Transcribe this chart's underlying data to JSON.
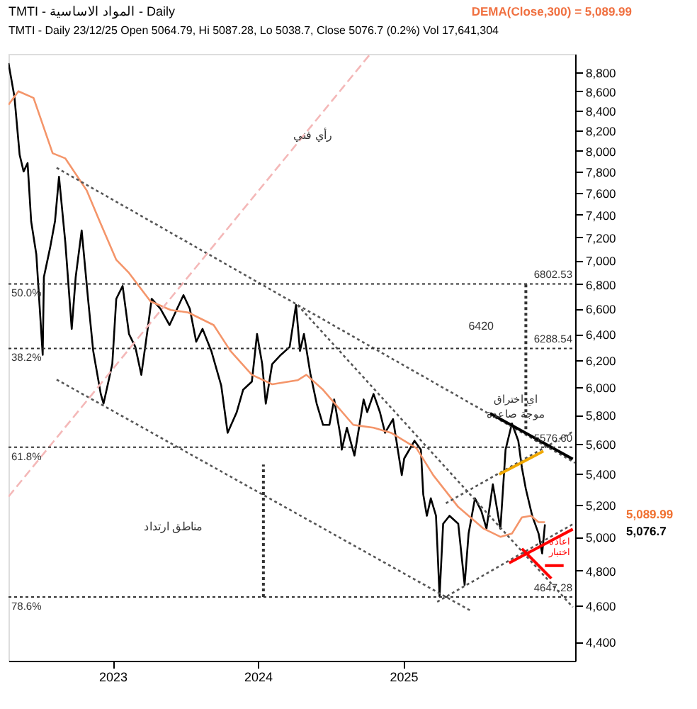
{
  "chart_data": {
    "type": "line",
    "title": "TMTI - المواد الاساسية - Daily",
    "subtitle": "TMTI - Daily 23/12/25 Open 5064.79, Hi 5087.28, Lo 5038.7, Close 5076.7 (0.2%) Vol 17,641,304",
    "xlim": [
      "2022-04-14",
      "2026-03-09"
    ],
    "xticks": [
      "2023",
      "2024",
      "2025"
    ],
    "ylim": [
      4300,
      9000
    ],
    "yticks": [
      {
        "value": 4400,
        "label": "4,400"
      },
      {
        "value": 4600,
        "label": "4,600"
      },
      {
        "value": 4800,
        "label": "4,800"
      },
      {
        "value": 5000,
        "label": "5,000"
      },
      {
        "value": 5200,
        "label": "5,200"
      },
      {
        "value": 5400,
        "label": "5,400"
      },
      {
        "value": 5600,
        "label": "5,600"
      },
      {
        "value": 5800,
        "label": "5,800"
      },
      {
        "value": 6000,
        "label": "6,000"
      },
      {
        "value": 6200,
        "label": "6,200"
      },
      {
        "value": 6400,
        "label": "6,400"
      },
      {
        "value": 6600,
        "label": "6,600"
      },
      {
        "value": 6800,
        "label": "6,800"
      },
      {
        "value": 7000,
        "label": "7,000"
      },
      {
        "value": 7200,
        "label": "7,200"
      },
      {
        "value": 7400,
        "label": "7,400"
      },
      {
        "value": 7600,
        "label": "7,600"
      },
      {
        "value": 7800,
        "label": "7,800"
      },
      {
        "value": 8000,
        "label": "8,000"
      },
      {
        "value": 8200,
        "label": "8,200"
      },
      {
        "value": 8400,
        "label": "8,400"
      },
      {
        "value": 8600,
        "label": "8,600"
      },
      {
        "value": 8800,
        "label": "8,800"
      }
    ],
    "log": true,
    "grid": false,
    "marker": "none",
    "series": [
      {
        "color": "#000000",
        "line_style": "solid",
        "x": [
          "2022-04-14",
          "2022-04-29",
          "2022-05-12",
          "2022-05-22",
          "2022-06-01",
          "2022-06-10",
          "2022-06-23",
          "2022-07-09",
          "2022-07-12",
          "2022-07-28",
          "2022-08-09",
          "2022-08-19",
          "2022-09-04",
          "2022-09-20",
          "2022-09-30",
          "2022-10-15",
          "2022-10-31",
          "2022-11-13",
          "2022-12-02",
          "2022-12-09",
          "2022-12-31",
          "2023-01-10",
          "2023-01-26",
          "2023-02-11",
          "2023-02-27",
          "2023-03-14",
          "2023-03-30",
          "2023-04-09",
          "2023-05-01",
          "2023-05-24",
          "2023-06-12",
          "2023-06-28",
          "2023-07-14",
          "2023-07-30",
          "2023-08-15",
          "2023-09-06",
          "2023-10-01",
          "2023-10-17",
          "2023-11-09",
          "2023-11-25",
          "2023-12-17",
          "2023-12-30",
          "2024-01-12",
          "2024-01-21",
          "2024-02-06",
          "2024-02-28",
          "2024-03-21",
          "2024-04-06",
          "2024-04-16",
          "2024-04-26",
          "2024-05-12",
          "2024-05-28",
          "2024-06-13",
          "2024-06-29",
          "2024-07-11",
          "2024-07-27",
          "2024-07-30",
          "2024-08-12",
          "2024-08-31",
          "2024-09-23",
          "2024-10-02",
          "2024-10-18",
          "2024-11-03",
          "2024-11-16",
          "2024-12-06",
          "2024-12-28",
          "2025-01-03",
          "2025-01-29",
          "2025-02-14",
          "2025-02-20",
          "2025-03-01",
          "2025-03-11",
          "2025-03-24",
          "2025-03-27",
          "2025-04-02",
          "2025-04-11",
          "2025-04-27",
          "2025-05-19",
          "2025-06-04",
          "2025-06-14",
          "2025-06-30",
          "2025-07-16",
          "2025-07-29",
          "2025-08-14",
          "2025-09-02",
          "2025-09-15",
          "2025-10-01",
          "2025-10-17",
          "2025-10-26",
          "2025-11-05",
          "2025-11-21",
          "2025-12-07",
          "2025-12-16",
          "2025-12-23"
        ],
        "values": [
          8900,
          8540,
          7960,
          7800,
          7880,
          7340,
          7050,
          6240,
          6860,
          7115,
          7344,
          7750,
          7150,
          6440,
          6860,
          7260,
          6680,
          6270,
          5950,
          5880,
          6170,
          6680,
          6785,
          6400,
          6300,
          6090,
          6440,
          6680,
          6600,
          6470,
          6600,
          6710,
          6600,
          6340,
          6440,
          6270,
          6010,
          5675,
          5820,
          5980,
          6040,
          6400,
          6170,
          5880,
          6170,
          6240,
          6300,
          6630,
          6270,
          6400,
          6100,
          5880,
          5730,
          5730,
          5910,
          5650,
          5560,
          5710,
          5520,
          5910,
          5820,
          5950,
          5820,
          5675,
          5770,
          5390,
          5500,
          5620,
          5560,
          5265,
          5130,
          5240,
          5130,
          4970,
          4650,
          5080,
          5130,
          5080,
          4716,
          5020,
          5240,
          5160,
          5050,
          5330,
          5050,
          5560,
          5740,
          5620,
          5440,
          5300,
          5130,
          5020,
          4900,
          5076.7
        ]
      },
      {
        "color": "#f4956a",
        "line_style": "solid",
        "x": [
          "2022-04-14",
          "2022-05-09",
          "2022-06-16",
          "2022-08-03",
          "2022-09-04",
          "2022-10-28",
          "2022-11-29",
          "2023-01-10",
          "2023-02-11",
          "2023-04-06",
          "2023-05-27",
          "2023-07-10",
          "2023-09-12",
          "2023-10-24",
          "2023-12-17",
          "2024-02-06",
          "2024-04-10",
          "2024-05-02",
          "2024-06-13",
          "2024-08-28",
          "2024-10-18",
          "2024-12-01",
          "2025-02-03",
          "2025-03-17",
          "2025-05-19",
          "2025-07-22",
          "2025-09-02",
          "2025-10-01",
          "2025-10-26",
          "2025-11-18",
          "2025-12-07",
          "2025-12-23"
        ],
        "values": [
          8460,
          8600,
          8530,
          7975,
          7925,
          7620,
          7344,
          7005,
          6894,
          6660,
          6590,
          6570,
          6470,
          6270,
          6090,
          6020,
          6050,
          6090,
          5980,
          5730,
          5710,
          5675,
          5570,
          5390,
          5185,
          5050,
          5000,
          5020,
          5120,
          5130,
          5090,
          5089.99
        ]
      },
      {
        "color": "#555555",
        "line_style": "dotted",
        "x": [
          "2022-08-13",
          "2026-03-09"
        ],
        "values": [
          7835,
          5471
        ]
      },
      {
        "color": "#555555",
        "line_style": "dotted",
        "x": [
          "2022-08-13",
          "2025-06-21"
        ],
        "values": [
          6055,
          4568
        ]
      },
      {
        "color": "#555555",
        "line_style": "dotted",
        "x": [
          "2024-04-10",
          "2026-03-03"
        ],
        "values": [
          6630,
          4590
        ]
      },
      {
        "color": "#555555",
        "line_style": "dotted",
        "x": [
          "2025-03-27",
          "2026-03-03"
        ],
        "values": [
          4620,
          5078
        ]
      },
      {
        "color": "#555555",
        "line_style": "dotted",
        "x": [
          "2025-04-18",
          "2026-03-03"
        ],
        "values": [
          5209,
          5683
        ]
      },
      {
        "color": "#f4b8b8",
        "line_style": "dashed",
        "x": [
          "2022-04-14",
          "2024-10-08"
        ],
        "values": [
          5251,
          8990
        ]
      },
      {
        "color": "#000000",
        "line_style": "solid",
        "x": [
          "2025-08-07",
          "2026-03-03"
        ],
        "values": [
          5811,
          5497
        ]
      },
      {
        "color": "#f0a800",
        "line_style": "solid",
        "x": [
          "2025-08-30",
          "2025-12-19"
        ],
        "values": [
          5395,
          5550
        ]
      },
      {
        "color": "#ff0000",
        "line_style": "solid",
        "x": [
          "2025-09-24",
          "2026-03-03"
        ],
        "values": [
          4844,
          5047
        ]
      },
      {
        "color": "#ff0000",
        "line_style": "solid",
        "x": [
          "2025-10-26",
          "2026-01-08"
        ],
        "values": [
          4929,
          4753
        ]
      },
      {
        "color": "#ff0000",
        "line_style": "solid",
        "x": [
          "2025-12-23",
          "2026-02-08"
        ],
        "values": [
          4828,
          4828
        ]
      },
      {
        "color": "#333333",
        "line_style": "dotted",
        "x": [
          "2025-11-05",
          "2025-11-05"
        ],
        "values": [
          5700,
          6802.53
        ]
      },
      {
        "color": "#333333",
        "line_style": "dotted",
        "x": [
          "2024-01-15",
          "2024-01-15"
        ],
        "values": [
          4647.28,
          5460
        ]
      }
    ],
    "ref_lines": [
      {
        "axis": "y",
        "value": 6802.53,
        "label": "6802.53",
        "color": "#333333",
        "line_style": "dotted"
      },
      {
        "axis": "y",
        "value": 6288.54,
        "label": "6288.54",
        "color": "#333333",
        "line_style": "dotted"
      },
      {
        "axis": "y",
        "value": 5576.6,
        "label": "5576.60",
        "color": "#333333",
        "line_style": "dotted"
      },
      {
        "axis": "y",
        "value": 4647.28,
        "label": "4647.28",
        "color": "#333333",
        "line_style": "dotted"
      }
    ],
    "annotations": [
      "DEMA(Close,300) = 5,089.99",
      "رأي فني",
      "6420",
      "اي اختراق",
      "موجة صاعدة",
      "مناطق ارتداد",
      "اعادة",
      "اختبار",
      {
        "text": "50.0%",
        "x": "2022-04-14",
        "y": 6802.53
      },
      {
        "text": "38.2%",
        "x": "2022-04-14",
        "y": 6288.54
      },
      {
        "text": "61.8%",
        "x": "2022-04-14",
        "y": 5576.6
      },
      {
        "text": "78.6%",
        "x": "2022-04-14",
        "y": 4647.28
      },
      "5,089.99",
      "5,076.7"
    ]
  }
}
